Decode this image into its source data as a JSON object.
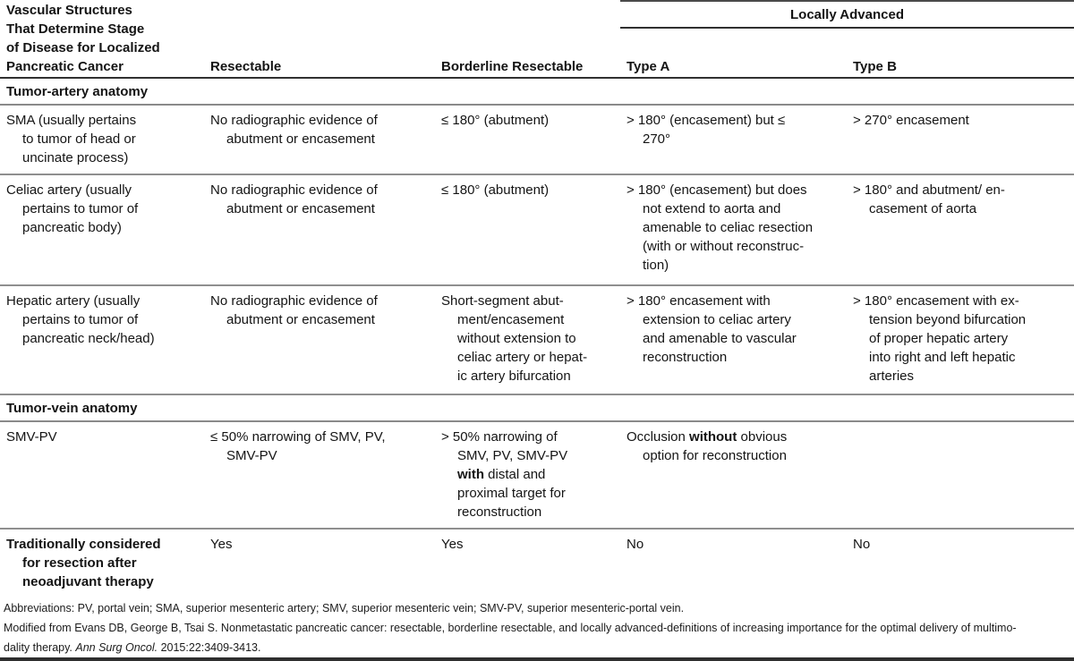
{
  "table": {
    "header": {
      "stub": "Vascular Structures\nThat Determine Stage\nof Disease for Localized\nPancreatic Cancer",
      "resectable": "Resectable",
      "borderline": "Borderline Resectable",
      "locally_advanced": "Locally Advanced",
      "type_a": "Type A",
      "type_b": "Type B"
    },
    "section_artery": "Tumor-artery anatomy",
    "section_vein": "Tumor-vein anatomy",
    "rows": {
      "sma": {
        "label": "SMA (usually pertains\nto tumor of head or\nuncinate process)",
        "resectable": "No radiographic evidence of\nabutment or encasement",
        "borderline": "≤ 180° (abutment)",
        "type_a": "> 180° (encasement) but ≤\n270°",
        "type_b": "> 270° encasement"
      },
      "celiac": {
        "label": "Celiac artery (usually\npertains to tumor of\npancreatic body)",
        "resectable": "No radiographic evidence of\nabutment or encasement",
        "borderline": "≤ 180° (abutment)",
        "type_a": "> 180° (encasement) but does\nnot extend to aorta and\namenable to celiac resection\n(with or without reconstruc-\ntion)",
        "type_b": "> 180° and abutment/ en-\ncasement of aorta"
      },
      "hepatic": {
        "label": "Hepatic artery (usually\npertains to tumor of\npancreatic neck/head)",
        "resectable": "No radiographic evidence of\nabutment or encasement",
        "borderline": "Short-segment abut-\nment/encasement\nwithout extension to\nceliac artery or hepat-\nic artery bifurcation",
        "type_a": "> 180° encasement with\nextension to celiac artery\nand amenable to vascular\nreconstruction",
        "type_b": "> 180° encasement with ex-\ntension beyond bifurcation\nof proper hepatic artery\ninto right and left hepatic\narteries"
      },
      "smv_pv": {
        "label": "SMV-PV",
        "resectable": "≤ 50% narrowing of SMV, PV,\nSMV-PV",
        "borderline_rich": [
          {
            "t": "> 50% narrowing of\nSMV, PV, SMV-PV\n"
          },
          {
            "t": "with",
            "b": true
          },
          {
            "t": " distal and\nproximal target for\nreconstruction"
          }
        ],
        "type_a_rich": [
          {
            "t": "Occlusion "
          },
          {
            "t": "without",
            "b": true
          },
          {
            "t": " obvious\noption for reconstruction"
          }
        ],
        "type_b": ""
      },
      "traditional": {
        "label": "Traditionally considered\nfor resection after\nneoadjuvant therapy",
        "resectable": "Yes",
        "borderline": "Yes",
        "type_a": "No",
        "type_b": "No"
      }
    }
  },
  "footnotes": {
    "abbreviations": "Abbreviations: PV, portal vein; SMA, superior mesenteric artery; SMV, superior mesenteric vein; SMV-PV, superior mesenteric-portal vein.",
    "citation_rich": [
      {
        "t": "Modified from Evans DB, George B, Tsai S. Nonmetastatic pancreatic cancer: resectable, borderline resectable, and locally advanced-definitions of increasing importance for the optimal delivery of multimo-\ndality therapy. "
      },
      {
        "t": "Ann Surg Oncol.",
        "i": true
      },
      {
        "t": " 2015:22:3409-3413."
      }
    ]
  },
  "colors": {
    "rule_dark": "#303030",
    "rule_gray": "#8f8f8f",
    "text": "#141414"
  }
}
